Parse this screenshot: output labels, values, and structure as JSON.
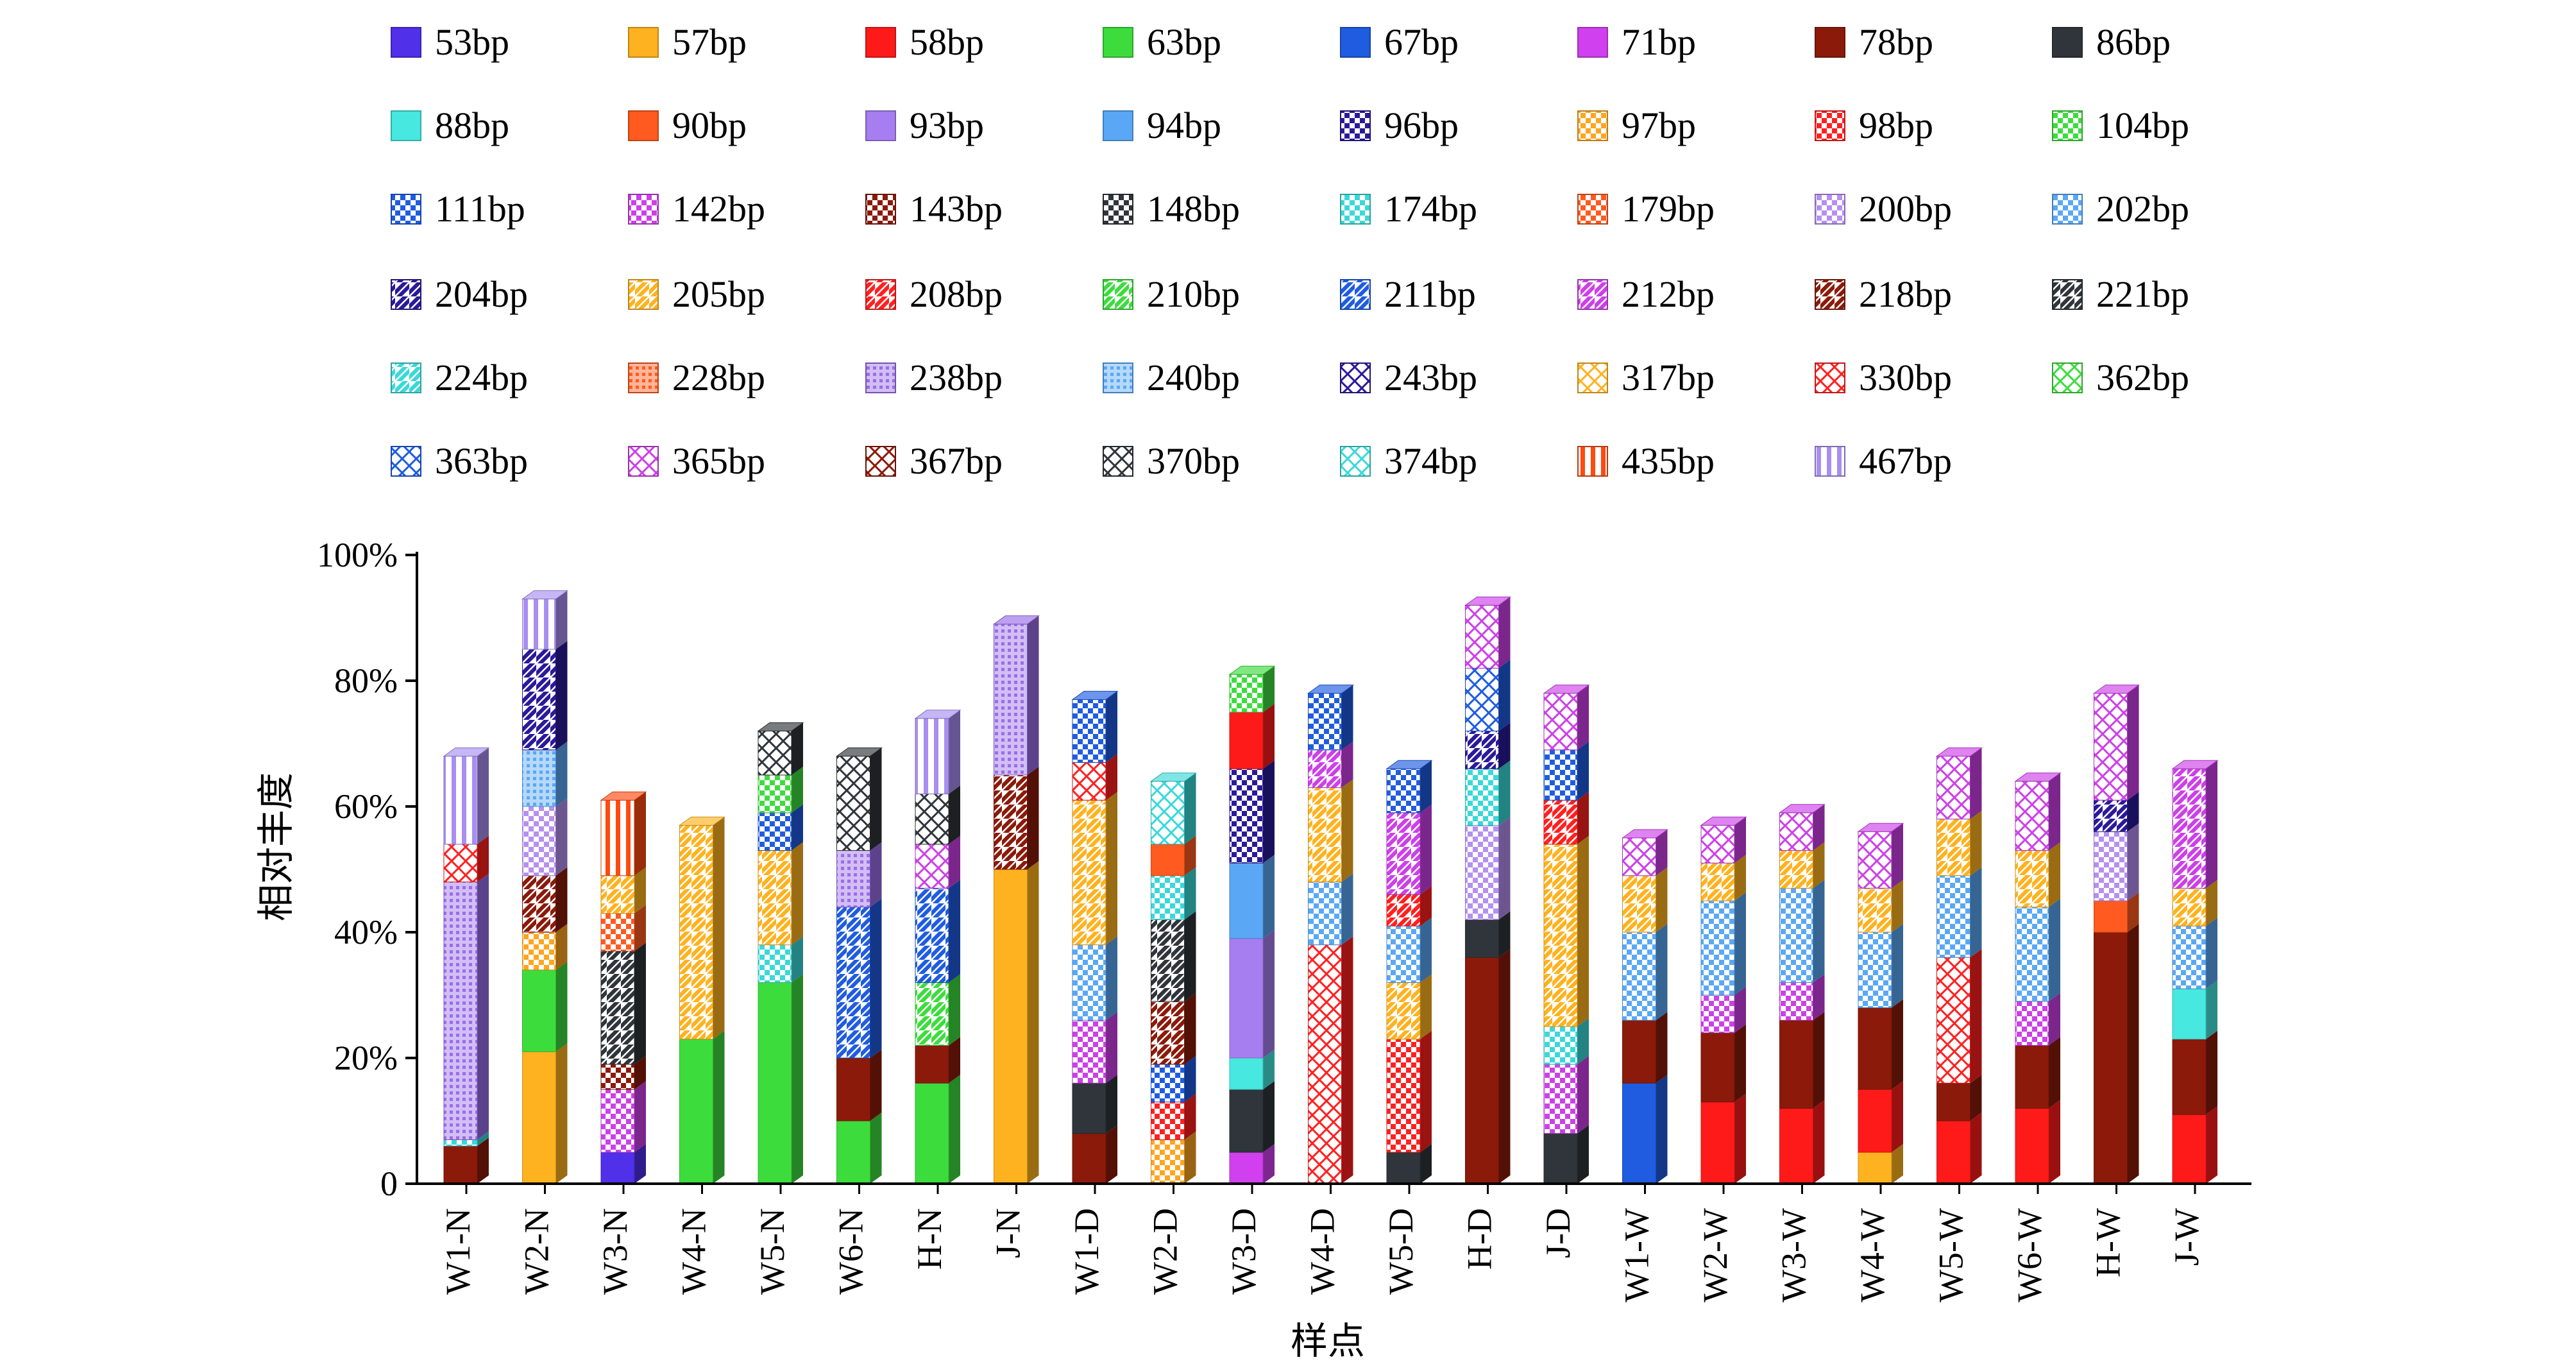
{
  "chart_data": {
    "type": "bar",
    "stacked": true,
    "xlabel": "样点",
    "ylabel": "相对丰度",
    "ylim": [
      0,
      100
    ],
    "yticks": [
      "0",
      "20%",
      "40%",
      "60%",
      "80%",
      "100%"
    ],
    "categories": [
      "W1-N",
      "W2-N",
      "W3-N",
      "W4-N",
      "W5-N",
      "W6-N",
      "H-N",
      "J-N",
      "W1-D",
      "W2-D",
      "W3-D",
      "W4-D",
      "W5-D",
      "H-D",
      "J-D",
      "W1-W",
      "W2-W",
      "W3-W",
      "W4-W",
      "W5-W",
      "W6-W",
      "H-W",
      "J-W"
    ],
    "legend": {
      "placement": "top",
      "items": [
        {
          "label": "53bp",
          "color": "#5030e8",
          "pattern": "solid"
        },
        {
          "label": "57bp",
          "color": "#ffb21f",
          "pattern": "solid"
        },
        {
          "label": "58bp",
          "color": "#ff1a1a",
          "pattern": "solid"
        },
        {
          "label": "63bp",
          "color": "#3ddc3d",
          "pattern": "solid"
        },
        {
          "label": "67bp",
          "color": "#1f5ce0",
          "pattern": "solid"
        },
        {
          "label": "71bp",
          "color": "#d040ee",
          "pattern": "solid"
        },
        {
          "label": "78bp",
          "color": "#8b1a0a",
          "pattern": "solid"
        },
        {
          "label": "86bp",
          "color": "#2f353a",
          "pattern": "solid"
        },
        {
          "label": "88bp",
          "color": "#46e8e0",
          "pattern": "solid"
        },
        {
          "label": "90bp",
          "color": "#ff5a1f",
          "pattern": "solid"
        },
        {
          "label": "93bp",
          "color": "#a67ef0",
          "pattern": "solid"
        },
        {
          "label": "94bp",
          "color": "#5aa8f5",
          "pattern": "solid"
        },
        {
          "label": "96bp",
          "color": "#2a1a9a",
          "pattern": "checker"
        },
        {
          "label": "97bp",
          "color": "#ffa51f",
          "pattern": "checker"
        },
        {
          "label": "98bp",
          "color": "#ff2020",
          "pattern": "checker"
        },
        {
          "label": "104bp",
          "color": "#3ddc3d",
          "pattern": "checker"
        },
        {
          "label": "111bp",
          "color": "#1f5ce0",
          "pattern": "checker"
        },
        {
          "label": "142bp",
          "color": "#cc40e8",
          "pattern": "checker"
        },
        {
          "label": "143bp",
          "color": "#8b1a0a",
          "pattern": "checker"
        },
        {
          "label": "148bp",
          "color": "#2f353a",
          "pattern": "checker"
        },
        {
          "label": "174bp",
          "color": "#3ad8d8",
          "pattern": "checker"
        },
        {
          "label": "179bp",
          "color": "#ff5a1f",
          "pattern": "checker"
        },
        {
          "label": "200bp",
          "color": "#b690f0",
          "pattern": "checker"
        },
        {
          "label": "202bp",
          "color": "#5aa8f5",
          "pattern": "checker"
        },
        {
          "label": "204bp",
          "color": "#2a1a9a",
          "pattern": "diag"
        },
        {
          "label": "205bp",
          "color": "#ffb21f",
          "pattern": "diag"
        },
        {
          "label": "208bp",
          "color": "#ff2020",
          "pattern": "diag"
        },
        {
          "label": "210bp",
          "color": "#3ddc3d",
          "pattern": "diag"
        },
        {
          "label": "211bp",
          "color": "#1f5ce0",
          "pattern": "diag"
        },
        {
          "label": "212bp",
          "color": "#cc40e8",
          "pattern": "diag"
        },
        {
          "label": "218bp",
          "color": "#8b1a0a",
          "pattern": "diag"
        },
        {
          "label": "221bp",
          "color": "#2f353a",
          "pattern": "diag"
        },
        {
          "label": "224bp",
          "color": "#3ad8d8",
          "pattern": "diag"
        },
        {
          "label": "228bp",
          "color": "#ff5a1f",
          "pattern": "dots"
        },
        {
          "label": "238bp",
          "color": "#9a6ee8",
          "pattern": "dots"
        },
        {
          "label": "240bp",
          "color": "#5aa8f5",
          "pattern": "dots"
        },
        {
          "label": "243bp",
          "color": "#2a1a9a",
          "pattern": "cross"
        },
        {
          "label": "317bp",
          "color": "#ffb21f",
          "pattern": "cross"
        },
        {
          "label": "330bp",
          "color": "#ff2020",
          "pattern": "cross"
        },
        {
          "label": "362bp",
          "color": "#3ddc3d",
          "pattern": "cross"
        },
        {
          "label": "363bp",
          "color": "#1f5ce0",
          "pattern": "cross"
        },
        {
          "label": "365bp",
          "color": "#cc40e8",
          "pattern": "cross"
        },
        {
          "label": "367bp",
          "color": "#8b1a0a",
          "pattern": "cross"
        },
        {
          "label": "370bp",
          "color": "#2f353a",
          "pattern": "cross"
        },
        {
          "label": "374bp",
          "color": "#3ad8d8",
          "pattern": "cross"
        },
        {
          "label": "435bp",
          "color": "#ff4a10",
          "pattern": "vstripe"
        },
        {
          "label": "467bp",
          "color": "#a88ef0",
          "pattern": "vstripe"
        }
      ]
    },
    "stacks": [
      [
        [
          "78bp",
          6
        ],
        [
          "174bp",
          1
        ],
        [
          "238bp",
          41
        ],
        [
          "330bp",
          6
        ],
        [
          "467bp",
          14
        ]
      ],
      [
        [
          "57bp",
          21
        ],
        [
          "63bp",
          13
        ],
        [
          "97bp",
          6
        ],
        [
          "218bp",
          9
        ],
        [
          "200bp",
          11
        ],
        [
          "240bp",
          9
        ],
        [
          "204bp",
          16
        ],
        [
          "467bp",
          8
        ]
      ],
      [
        [
          "53bp",
          5
        ],
        [
          "142bp",
          10
        ],
        [
          "143bp",
          4
        ],
        [
          "221bp",
          18
        ],
        [
          "179bp",
          6
        ],
        [
          "205bp",
          6
        ],
        [
          "435bp",
          12
        ]
      ],
      [
        [
          "63bp",
          23
        ],
        [
          "205bp",
          34
        ]
      ],
      [
        [
          "63bp",
          32
        ],
        [
          "174bp",
          6
        ],
        [
          "205bp",
          15
        ],
        [
          "111bp",
          6
        ],
        [
          "104bp",
          6
        ],
        [
          "370bp",
          7
        ]
      ],
      [
        [
          "63bp",
          10
        ],
        [
          "78bp",
          10
        ],
        [
          "211bp",
          24
        ],
        [
          "238bp",
          9
        ],
        [
          "370bp",
          15
        ]
      ],
      [
        [
          "63bp",
          16
        ],
        [
          "78bp",
          6
        ],
        [
          "210bp",
          10
        ],
        [
          "211bp",
          15
        ],
        [
          "365bp",
          7
        ],
        [
          "370bp",
          8
        ],
        [
          "467bp",
          12
        ]
      ],
      [
        [
          "57bp",
          50
        ],
        [
          "218bp",
          15
        ],
        [
          "238bp",
          24
        ]
      ],
      [
        [
          "78bp",
          8
        ],
        [
          "86bp",
          8
        ],
        [
          "142bp",
          10
        ],
        [
          "202bp",
          12
        ],
        [
          "205bp",
          23
        ],
        [
          "330bp",
          6
        ],
        [
          "111bp",
          10
        ]
      ],
      [
        [
          "97bp",
          7
        ],
        [
          "98bp",
          6
        ],
        [
          "111bp",
          6
        ],
        [
          "218bp",
          10
        ],
        [
          "221bp",
          13
        ],
        [
          "174bp",
          7
        ],
        [
          "90bp",
          5
        ],
        [
          "374bp",
          10
        ]
      ],
      [
        [
          "71bp",
          5
        ],
        [
          "86bp",
          10
        ],
        [
          "88bp",
          5
        ],
        [
          "93bp",
          19
        ],
        [
          "94bp",
          12
        ],
        [
          "96bp",
          15
        ],
        [
          "58bp",
          9
        ],
        [
          "104bp",
          6
        ]
      ],
      [
        [
          "330bp",
          38
        ],
        [
          "202bp",
          10
        ],
        [
          "205bp",
          15
        ],
        [
          "212bp",
          6
        ],
        [
          "111bp",
          9
        ]
      ],
      [
        [
          "86bp",
          5
        ],
        [
          "98bp",
          18
        ],
        [
          "205bp",
          9
        ],
        [
          "202bp",
          9
        ],
        [
          "208bp",
          5
        ],
        [
          "212bp",
          13
        ],
        [
          "111bp",
          7
        ]
      ],
      [
        [
          "78bp",
          36
        ],
        [
          "86bp",
          6
        ],
        [
          "200bp",
          15
        ],
        [
          "174bp",
          9
        ],
        [
          "204bp",
          6
        ],
        [
          "363bp",
          10
        ],
        [
          "365bp",
          10
        ]
      ],
      [
        [
          "86bp",
          8
        ],
        [
          "142bp",
          11
        ],
        [
          "174bp",
          6
        ],
        [
          "205bp",
          29
        ],
        [
          "208bp",
          7
        ],
        [
          "111bp",
          8
        ],
        [
          "365bp",
          9
        ]
      ],
      [
        [
          "67bp",
          16
        ],
        [
          "78bp",
          10
        ],
        [
          "202bp",
          14
        ],
        [
          "205bp",
          9
        ],
        [
          "365bp",
          6
        ]
      ],
      [
        [
          "58bp",
          13
        ],
        [
          "78bp",
          11
        ],
        [
          "142bp",
          6
        ],
        [
          "202bp",
          15
        ],
        [
          "205bp",
          6
        ],
        [
          "365bp",
          6
        ]
      ],
      [
        [
          "58bp",
          12
        ],
        [
          "78bp",
          14
        ],
        [
          "142bp",
          6
        ],
        [
          "202bp",
          15
        ],
        [
          "205bp",
          6
        ],
        [
          "365bp",
          6
        ]
      ],
      [
        [
          "57bp",
          5
        ],
        [
          "58bp",
          10
        ],
        [
          "78bp",
          13
        ],
        [
          "202bp",
          12
        ],
        [
          "205bp",
          7
        ],
        [
          "365bp",
          9
        ]
      ],
      [
        [
          "58bp",
          10
        ],
        [
          "78bp",
          6
        ],
        [
          "330bp",
          20
        ],
        [
          "202bp",
          13
        ],
        [
          "205bp",
          9
        ],
        [
          "365bp",
          10
        ]
      ],
      [
        [
          "58bp",
          12
        ],
        [
          "78bp",
          10
        ],
        [
          "142bp",
          7
        ],
        [
          "202bp",
          15
        ],
        [
          "205bp",
          9
        ],
        [
          "365bp",
          11
        ]
      ],
      [
        [
          "78bp",
          40
        ],
        [
          "90bp",
          5
        ],
        [
          "200bp",
          11
        ],
        [
          "204bp",
          5
        ],
        [
          "365bp",
          17
        ]
      ],
      [
        [
          "58bp",
          11
        ],
        [
          "78bp",
          12
        ],
        [
          "88bp",
          8
        ],
        [
          "202bp",
          10
        ],
        [
          "205bp",
          6
        ],
        [
          "212bp",
          19
        ]
      ]
    ]
  }
}
